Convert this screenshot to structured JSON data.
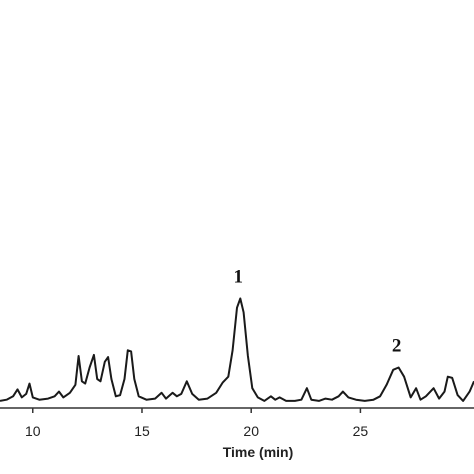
{
  "chart_data": {
    "type": "line",
    "title": "",
    "xlabel": "Time (min)",
    "ylabel": "",
    "xlim": [
      8.5,
      30.2
    ],
    "ylim": [
      0,
      1.0
    ],
    "xticks": [
      10,
      15,
      20,
      25
    ],
    "tick_labels": [
      "10",
      "15",
      "20",
      "25"
    ],
    "line_color": "#1a1a1a",
    "grid": false,
    "legend": "none",
    "series": [
      {
        "points": [
          [
            8.5,
            0.01
          ],
          [
            8.8,
            0.02
          ],
          [
            9.1,
            0.05
          ],
          [
            9.3,
            0.11
          ],
          [
            9.5,
            0.04
          ],
          [
            9.7,
            0.07
          ],
          [
            9.85,
            0.16
          ],
          [
            10.0,
            0.04
          ],
          [
            10.3,
            0.02
          ],
          [
            10.7,
            0.03
          ],
          [
            11.0,
            0.05
          ],
          [
            11.2,
            0.09
          ],
          [
            11.4,
            0.04
          ],
          [
            11.7,
            0.08
          ],
          [
            11.95,
            0.15
          ],
          [
            12.1,
            0.4
          ],
          [
            12.25,
            0.18
          ],
          [
            12.4,
            0.16
          ],
          [
            12.6,
            0.3
          ],
          [
            12.8,
            0.41
          ],
          [
            12.95,
            0.2
          ],
          [
            13.1,
            0.18
          ],
          [
            13.3,
            0.35
          ],
          [
            13.45,
            0.39
          ],
          [
            13.6,
            0.2
          ],
          [
            13.8,
            0.05
          ],
          [
            14.0,
            0.06
          ],
          [
            14.2,
            0.2
          ],
          [
            14.35,
            0.45
          ],
          [
            14.5,
            0.44
          ],
          [
            14.65,
            0.2
          ],
          [
            14.85,
            0.05
          ],
          [
            15.2,
            0.02
          ],
          [
            15.6,
            0.03
          ],
          [
            15.9,
            0.08
          ],
          [
            16.1,
            0.03
          ],
          [
            16.4,
            0.08
          ],
          [
            16.6,
            0.05
          ],
          [
            16.8,
            0.07
          ],
          [
            17.05,
            0.18
          ],
          [
            17.3,
            0.07
          ],
          [
            17.6,
            0.02
          ],
          [
            18.0,
            0.03
          ],
          [
            18.4,
            0.08
          ],
          [
            18.7,
            0.17
          ],
          [
            18.95,
            0.22
          ],
          [
            19.15,
            0.45
          ],
          [
            19.35,
            0.82
          ],
          [
            19.5,
            0.9
          ],
          [
            19.65,
            0.78
          ],
          [
            19.85,
            0.4
          ],
          [
            20.05,
            0.12
          ],
          [
            20.3,
            0.04
          ],
          [
            20.6,
            0.01
          ],
          [
            20.9,
            0.05
          ],
          [
            21.1,
            0.02
          ],
          [
            21.3,
            0.04
          ],
          [
            21.6,
            0.01
          ],
          [
            22.0,
            0.01
          ],
          [
            22.3,
            0.02
          ],
          [
            22.55,
            0.12
          ],
          [
            22.75,
            0.02
          ],
          [
            23.1,
            0.01
          ],
          [
            23.4,
            0.03
          ],
          [
            23.7,
            0.02
          ],
          [
            24.0,
            0.05
          ],
          [
            24.2,
            0.09
          ],
          [
            24.45,
            0.04
          ],
          [
            24.8,
            0.02
          ],
          [
            25.2,
            0.01
          ],
          [
            25.6,
            0.02
          ],
          [
            25.9,
            0.05
          ],
          [
            26.2,
            0.15
          ],
          [
            26.5,
            0.28
          ],
          [
            26.75,
            0.3
          ],
          [
            27.0,
            0.22
          ],
          [
            27.3,
            0.04
          ],
          [
            27.55,
            0.12
          ],
          [
            27.75,
            0.02
          ],
          [
            28.0,
            0.05
          ],
          [
            28.35,
            0.12
          ],
          [
            28.6,
            0.03
          ],
          [
            28.85,
            0.09
          ],
          [
            29.0,
            0.22
          ],
          [
            29.2,
            0.21
          ],
          [
            29.45,
            0.06
          ],
          [
            29.7,
            0.01
          ],
          [
            30.0,
            0.09
          ],
          [
            30.2,
            0.18
          ]
        ]
      }
    ],
    "annotations": [
      {
        "text": "1",
        "x": 19.5,
        "y": 0.9
      },
      {
        "text": "2",
        "x": 26.75,
        "y": 0.3
      }
    ]
  }
}
